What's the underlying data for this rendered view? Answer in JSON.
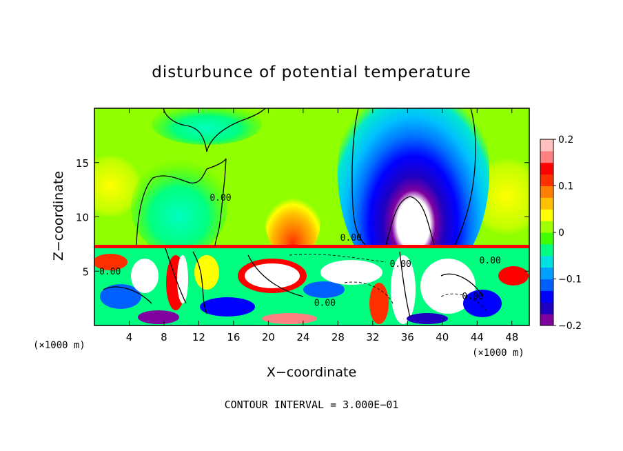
{
  "chart_data": {
    "type": "heatmap",
    "title": "disturbunce of potential temperature",
    "xlabel": "X−coordinate",
    "ylabel": "Z−coordinate",
    "x_unit_label": "(×1000 m)",
    "y_unit_label": "(×1000 m)",
    "footer": "CONTOUR INTERVAL = 3.000E−01",
    "xlim": [
      0,
      50
    ],
    "ylim": [
      0,
      20
    ],
    "x_ticks": [
      4,
      8,
      12,
      16,
      20,
      24,
      28,
      32,
      36,
      40,
      44,
      48
    ],
    "x_tick_labels": [
      "4",
      "8",
      "12",
      "16",
      "20",
      "24",
      "28",
      "32",
      "36",
      "40",
      "44",
      "48"
    ],
    "y_ticks": [
      5,
      10,
      15
    ],
    "y_tick_labels": [
      "5",
      "10",
      "15"
    ],
    "colorbar": {
      "range": [
        -0.2,
        0.2
      ],
      "ticks": [
        0.2,
        0.1,
        0,
        -0.1,
        -0.2
      ],
      "tick_labels": [
        "0.2",
        "0.1",
        "0",
        "−0.1",
        "−0.2"
      ],
      "colors": [
        "#8000a0",
        "#2000c0",
        "#0000ff",
        "#0060ff",
        "#00a0ff",
        "#00e0e0",
        "#00ff80",
        "#40ff00",
        "#a0ff00",
        "#ffff00",
        "#ffc000",
        "#ff8000",
        "#ff3000",
        "#ff0000",
        "#ff8080",
        "#ffc0c0"
      ]
    },
    "contour_labels": [
      {
        "text": "0.00",
        "x": 14.5,
        "z": 11.5
      },
      {
        "text": "0.00",
        "x": 29.5,
        "z": 7.8
      },
      {
        "text": "0.00",
        "x": 1.8,
        "z": 4.7
      },
      {
        "text": "0.00",
        "x": 26.5,
        "z": 1.8
      },
      {
        "text": "0.00",
        "x": 45.5,
        "z": 5.7
      },
      {
        "text": "0.00",
        "x": 43.5,
        "z": 2.4
      },
      {
        "text": "0.00",
        "x": 35.2,
        "z": 5.4
      }
    ]
  }
}
